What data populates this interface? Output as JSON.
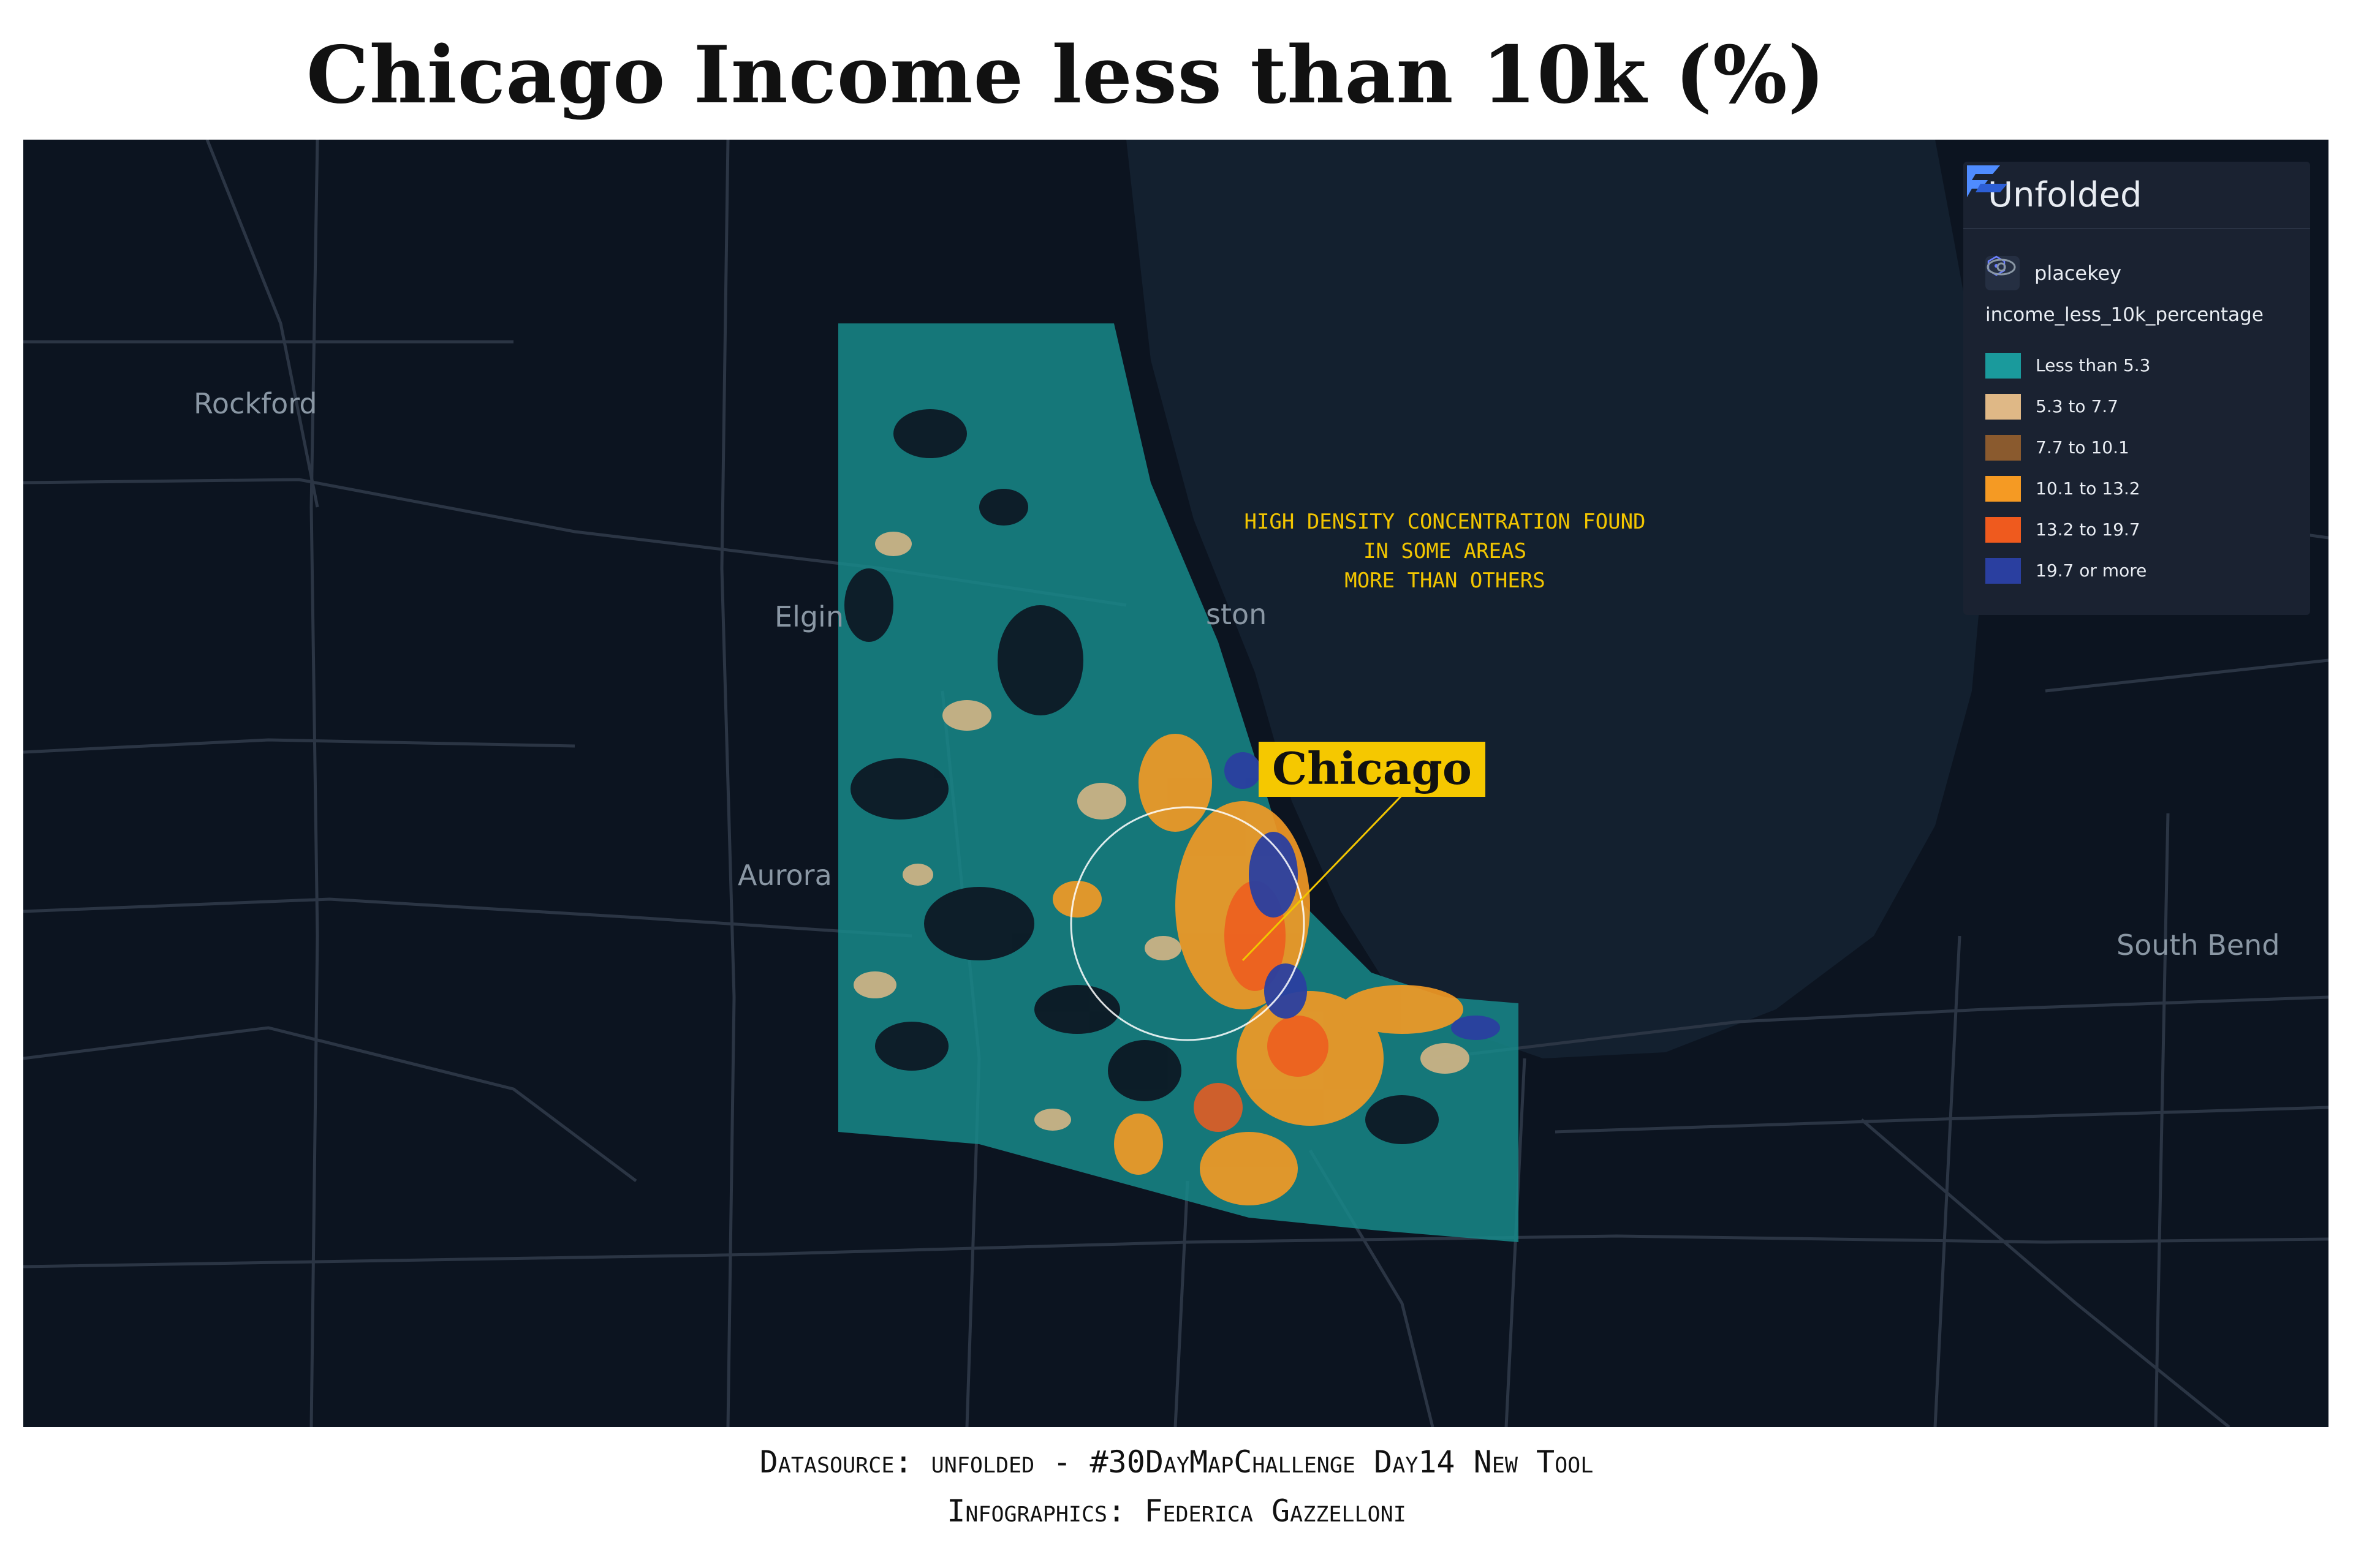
{
  "title": "Chicago Income less than 10k (%)",
  "map": {
    "city_labels": [
      "Rockford",
      "Elgin",
      "Aurora",
      "South Bend",
      "ston"
    ],
    "annotation": [
      "HIGH DENSITY CONCENTRATION FOUND",
      "IN SOME AREAS",
      "MORE THAN OTHERS"
    ],
    "callout": "Chicago",
    "colors": {
      "background": "#0c1420",
      "lake": "#13202f",
      "road": "#2b3544",
      "annotation": "#f2c500",
      "callout_bg": "#f5c800"
    }
  },
  "legend": {
    "brand": "Unfolded",
    "layer": "placekey",
    "field": "income_less_10k_percentage",
    "items": [
      {
        "label": "Less than 5.3",
        "color": "#1a9a9c"
      },
      {
        "label": "5.3 to 7.7",
        "color": "#dfb886"
      },
      {
        "label": "7.7 to 10.1",
        "color": "#8a5a2e"
      },
      {
        "label": "10.1 to 13.2",
        "color": "#f59a23"
      },
      {
        "label": "13.2 to 19.7",
        "color": "#ef5a1e"
      },
      {
        "label": "19.7 or more",
        "color": "#2a3fa0"
      }
    ]
  },
  "caption": {
    "line1": "Datasource: unfolded - #30DayMapChallenge Day14 New Tool",
    "line2": "Infographics: Federica Gazzelloni"
  }
}
